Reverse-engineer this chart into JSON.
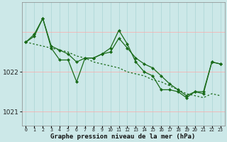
{
  "hours": [
    0,
    1,
    2,
    3,
    4,
    5,
    6,
    7,
    8,
    9,
    10,
    11,
    12,
    13,
    14,
    15,
    16,
    17,
    18,
    19,
    20,
    21,
    22,
    23
  ],
  "y_top": [
    1022.75,
    1022.9,
    1023.35,
    1022.65,
    1022.55,
    1022.45,
    1022.25,
    1022.35,
    1022.35,
    1022.45,
    1022.5,
    1022.85,
    1022.6,
    1022.35,
    1022.2,
    1022.1,
    1021.9,
    1021.7,
    1021.55,
    1021.4,
    1021.5,
    1021.5,
    1022.25,
    1022.2
  ],
  "y_mid": [
    1022.75,
    1022.95,
    1023.35,
    1022.6,
    1022.3,
    1022.3,
    1021.75,
    1022.35,
    1022.35,
    1022.45,
    1022.6,
    1023.05,
    1022.7,
    1022.25,
    1022.0,
    1021.9,
    1021.55,
    1021.55,
    1021.5,
    1021.35,
    1021.5,
    1021.45,
    1022.25,
    1022.2
  ],
  "y_dot": [
    1022.75,
    1022.7,
    1022.65,
    1022.6,
    1022.55,
    1022.5,
    1022.4,
    1022.35,
    1022.25,
    1022.2,
    1022.15,
    1022.1,
    1022.0,
    1021.95,
    1021.9,
    1021.8,
    1021.75,
    1021.65,
    1021.55,
    1021.45,
    1021.4,
    1021.35,
    1021.45,
    1021.4
  ],
  "bg_color": "#cce8e8",
  "grid_color_v": "#aad4d4",
  "grid_color_h": "#ffaaaa",
  "line_color": "#1a6b1a",
  "xlabel": "Graphe pression niveau de la mer (hPa)",
  "ylim_min": 1020.65,
  "ylim_max": 1023.75,
  "yticks": [
    1021.0,
    1022.0
  ],
  "label_fontsize": 6.5
}
